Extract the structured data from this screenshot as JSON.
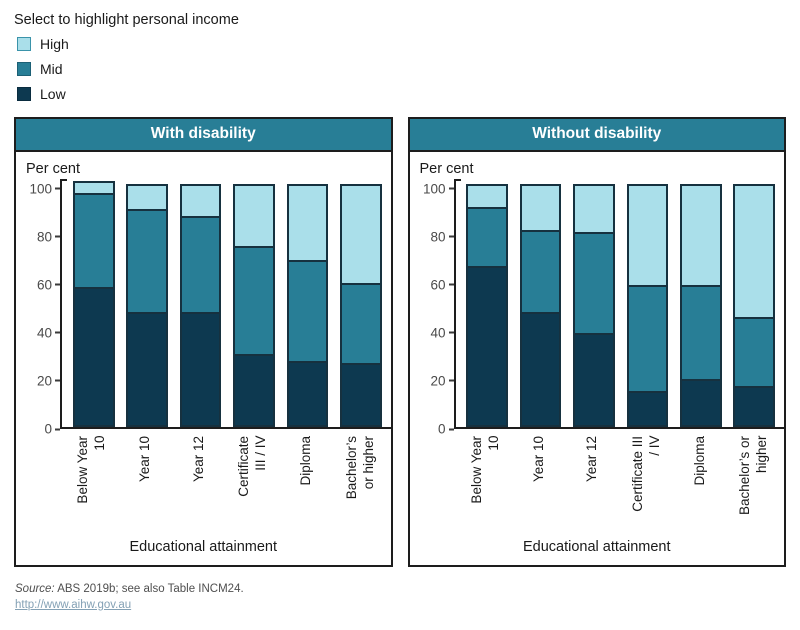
{
  "legend": {
    "title": "Select to highlight personal income",
    "items": [
      {
        "label": "High",
        "color": "#aadfea",
        "border": "#3a93aa"
      },
      {
        "label": "Mid",
        "color": "#287e96",
        "border": "#1c6075"
      },
      {
        "label": "Low",
        "color": "#0d3950",
        "border": "#0a2c3f"
      }
    ]
  },
  "chart_data": [
    {
      "type": "bar",
      "stacked": true,
      "title": "With disability",
      "units_label": "Per cent",
      "xlabel": "Educational attainment",
      "categories": [
        "Below Year\n10",
        "Year 10",
        "Year 12",
        "Certificate\nIII / IV",
        "Diploma",
        "Bachelor’s\nor higher"
      ],
      "series": [
        {
          "name": "Low",
          "color": "#0d3950",
          "values": [
            59,
            48,
            48,
            30,
            27,
            26
          ]
        },
        {
          "name": "Mid",
          "color": "#287e96",
          "values": [
            40,
            44,
            41,
            46,
            43,
            34
          ]
        },
        {
          "name": "High",
          "color": "#aadfea",
          "values": [
            4,
            10,
            13,
            26,
            32,
            42
          ]
        }
      ],
      "yticks": [
        0,
        20,
        40,
        60,
        80,
        100
      ],
      "ylim": [
        0,
        104
      ],
      "grid": false
    },
    {
      "type": "bar",
      "stacked": true,
      "title": "Without disability",
      "units_label": "Per cent",
      "xlabel": "Educational attainment",
      "categories": [
        "Below Year\n10",
        "Year 10",
        "Year 12",
        "Certificate III\n/ IV",
        "Diploma",
        "Bachelor’s or\nhigher"
      ],
      "series": [
        {
          "name": "Low",
          "color": "#0d3950",
          "values": [
            68,
            48,
            39,
            14,
            19,
            16
          ]
        },
        {
          "name": "Mid",
          "color": "#287e96",
          "values": [
            25,
            35,
            43,
            45,
            40,
            29
          ]
        },
        {
          "name": "High",
          "color": "#aadfea",
          "values": [
            9,
            19,
            20,
            43,
            43,
            57
          ]
        }
      ],
      "yticks": [
        0,
        20,
        40,
        60,
        80,
        100
      ],
      "ylim": [
        0,
        104
      ],
      "grid": false
    }
  ],
  "footer": {
    "source_prefix": "Source:",
    "source_text": " ABS 2019b; see also Table INCM24.",
    "link": "http://www.aihw.gov.au"
  }
}
